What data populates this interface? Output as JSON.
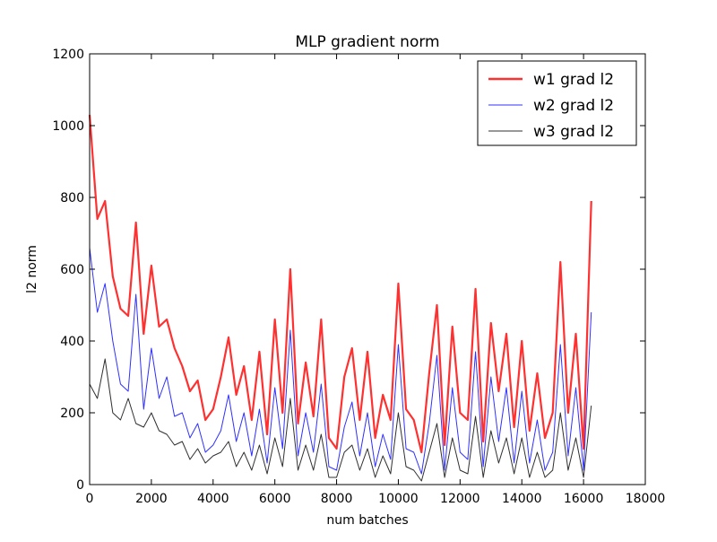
{
  "chart_data": {
    "type": "line",
    "title": "MLP gradient norm",
    "xlabel": "num batches",
    "ylabel": "l2 norm",
    "x": [
      0,
      250,
      500,
      750,
      1000,
      1250,
      1500,
      1750,
      2000,
      2250,
      2500,
      2750,
      3000,
      3250,
      3500,
      3750,
      4000,
      4250,
      4500,
      4750,
      5000,
      5250,
      5500,
      5750,
      6000,
      6250,
      6500,
      6750,
      7000,
      7250,
      7500,
      7750,
      8000,
      8250,
      8500,
      8750,
      9000,
      9250,
      9500,
      9750,
      10000,
      10250,
      10500,
      10750,
      11000,
      11250,
      11500,
      11750,
      12000,
      12250,
      12500,
      12750,
      13000,
      13250,
      13500,
      13750,
      14000,
      14250,
      14500,
      14750,
      15000,
      15250,
      15500,
      15750,
      16000,
      16250
    ],
    "series": [
      {
        "name": "w1 grad l2",
        "color": "#ff3030",
        "values": [
          1030,
          740,
          790,
          580,
          490,
          470,
          730,
          420,
          610,
          440,
          460,
          380,
          330,
          260,
          290,
          180,
          210,
          300,
          410,
          250,
          330,
          180,
          370,
          140,
          460,
          200,
          600,
          170,
          340,
          190,
          460,
          130,
          100,
          300,
          380,
          180,
          370,
          130,
          250,
          180,
          560,
          210,
          180,
          90,
          310,
          500,
          110,
          440,
          200,
          180,
          545,
          120,
          450,
          260,
          420,
          160,
          400,
          150,
          310,
          130,
          200,
          620,
          200,
          420,
          100,
          790
        ]
      },
      {
        "name": "w2 grad l2",
        "color": "#3030ff",
        "values": [
          660,
          480,
          560,
          400,
          280,
          260,
          530,
          210,
          380,
          240,
          300,
          190,
          200,
          130,
          170,
          90,
          110,
          150,
          250,
          120,
          200,
          80,
          210,
          60,
          270,
          100,
          430,
          80,
          200,
          90,
          280,
          50,
          40,
          160,
          230,
          80,
          200,
          50,
          140,
          70,
          390,
          100,
          90,
          30,
          170,
          360,
          40,
          270,
          90,
          70,
          370,
          50,
          300,
          120,
          270,
          60,
          260,
          60,
          180,
          40,
          90,
          390,
          80,
          270,
          40,
          480
        ]
      },
      {
        "name": "w3 grad l2",
        "color": "#303030",
        "values": [
          280,
          240,
          350,
          200,
          180,
          240,
          170,
          160,
          200,
          150,
          140,
          110,
          120,
          70,
          100,
          60,
          80,
          90,
          120,
          50,
          90,
          40,
          110,
          30,
          130,
          50,
          240,
          40,
          110,
          40,
          140,
          20,
          20,
          90,
          110,
          40,
          100,
          20,
          80,
          30,
          200,
          50,
          40,
          10,
          90,
          170,
          20,
          130,
          40,
          30,
          190,
          20,
          150,
          60,
          130,
          30,
          130,
          20,
          90,
          20,
          40,
          200,
          40,
          130,
          20,
          220
        ]
      }
    ],
    "xlim": [
      0,
      18000
    ],
    "xticks": [
      0,
      2000,
      4000,
      6000,
      8000,
      10000,
      12000,
      14000,
      16000,
      18000
    ],
    "ylim": [
      0,
      1200
    ],
    "yticks": [
      0,
      200,
      400,
      600,
      800,
      1000,
      1200
    ],
    "legend": "upper right"
  }
}
